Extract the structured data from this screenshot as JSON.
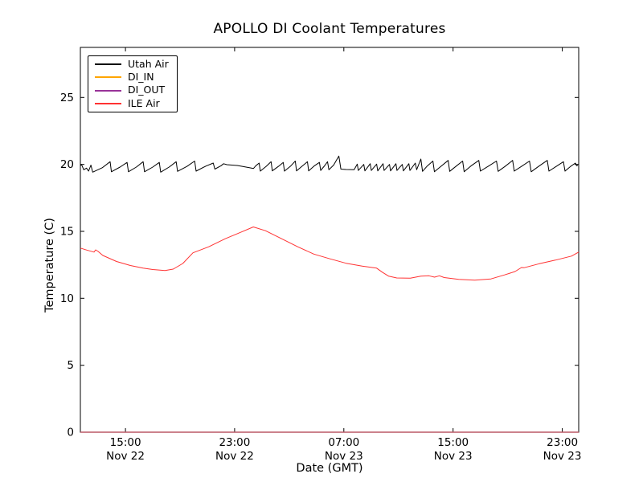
{
  "chart_data": {
    "type": "line",
    "title": "APOLLO DI Coolant Temperatures",
    "xlabel": "Date (GMT)",
    "ylabel": "Temperature (C)",
    "xlim_hours": [
      11.7,
      48.2
    ],
    "ylim": [
      0,
      28.74
    ],
    "grid": false,
    "legend_position": "upper left",
    "y_ticks": [
      0,
      5,
      10,
      15,
      20,
      25
    ],
    "x_ticks": [
      {
        "hour": 15,
        "time": "15:00",
        "date": "Nov 22"
      },
      {
        "hour": 23,
        "time": "23:00",
        "date": "Nov 22"
      },
      {
        "hour": 31,
        "time": "07:00",
        "date": "Nov 23"
      },
      {
        "hour": 39,
        "time": "15:00",
        "date": "Nov 23"
      },
      {
        "hour": 47,
        "time": "23:00",
        "date": "Nov 23"
      }
    ],
    "series": [
      {
        "name": "Utah Air",
        "color": "#000000",
        "width": 1.0,
        "points": [
          [
            11.7,
            19.9
          ],
          [
            11.78,
            20.0
          ],
          [
            11.95,
            19.6
          ],
          [
            12.15,
            19.72
          ],
          [
            12.3,
            19.5
          ],
          [
            12.47,
            19.95
          ],
          [
            12.6,
            19.42
          ],
          [
            13.3,
            19.75
          ],
          [
            13.88,
            20.2
          ],
          [
            13.97,
            19.45
          ],
          [
            14.6,
            19.8
          ],
          [
            15.12,
            20.15
          ],
          [
            15.22,
            19.45
          ],
          [
            15.8,
            19.8
          ],
          [
            16.3,
            20.2
          ],
          [
            16.4,
            19.45
          ],
          [
            17.0,
            19.8
          ],
          [
            17.48,
            20.15
          ],
          [
            17.58,
            19.42
          ],
          [
            18.2,
            19.8
          ],
          [
            18.72,
            20.2
          ],
          [
            18.82,
            19.48
          ],
          [
            19.5,
            19.85
          ],
          [
            20.07,
            20.25
          ],
          [
            20.18,
            19.5
          ],
          [
            20.9,
            19.88
          ],
          [
            21.43,
            20.1
          ],
          [
            21.55,
            19.65
          ],
          [
            22.0,
            19.9
          ],
          [
            22.19,
            20.05
          ],
          [
            22.43,
            19.98
          ],
          [
            23.2,
            19.92
          ],
          [
            24.08,
            19.76
          ],
          [
            24.38,
            19.7
          ],
          [
            24.55,
            19.9
          ],
          [
            24.79,
            20.1
          ],
          [
            24.88,
            19.5
          ],
          [
            25.3,
            19.85
          ],
          [
            25.67,
            20.2
          ],
          [
            25.76,
            19.52
          ],
          [
            26.2,
            19.85
          ],
          [
            26.56,
            20.15
          ],
          [
            26.65,
            19.5
          ],
          [
            27.1,
            19.88
          ],
          [
            27.44,
            20.25
          ],
          [
            27.53,
            19.52
          ],
          [
            27.95,
            19.88
          ],
          [
            28.33,
            20.2
          ],
          [
            28.42,
            19.52
          ],
          [
            28.85,
            19.9
          ],
          [
            29.21,
            20.15
          ],
          [
            29.3,
            19.55
          ],
          [
            29.6,
            19.92
          ],
          [
            29.8,
            20.2
          ],
          [
            29.9,
            19.6
          ],
          [
            30.25,
            19.95
          ],
          [
            30.63,
            20.62
          ],
          [
            30.78,
            19.65
          ],
          [
            31.16,
            19.62
          ],
          [
            31.75,
            19.6
          ],
          [
            31.98,
            20.02
          ],
          [
            32.06,
            19.55
          ],
          [
            32.46,
            20.0
          ],
          [
            32.54,
            19.52
          ],
          [
            32.93,
            20.05
          ],
          [
            33.01,
            19.55
          ],
          [
            33.4,
            20.02
          ],
          [
            33.48,
            19.52
          ],
          [
            33.87,
            20.05
          ],
          [
            33.95,
            19.55
          ],
          [
            34.34,
            20.0
          ],
          [
            34.42,
            19.52
          ],
          [
            34.81,
            20.05
          ],
          [
            34.89,
            19.55
          ],
          [
            35.28,
            20.0
          ],
          [
            35.36,
            19.52
          ],
          [
            35.76,
            20.05
          ],
          [
            35.84,
            19.55
          ],
          [
            36.23,
            20.1
          ],
          [
            36.33,
            19.6
          ],
          [
            36.64,
            20.4
          ],
          [
            36.76,
            19.48
          ],
          [
            37.1,
            19.88
          ],
          [
            37.52,
            20.25
          ],
          [
            37.63,
            19.45
          ],
          [
            38.1,
            19.85
          ],
          [
            38.64,
            20.3
          ],
          [
            38.75,
            19.48
          ],
          [
            39.2,
            19.85
          ],
          [
            39.7,
            20.25
          ],
          [
            39.81,
            19.45
          ],
          [
            40.3,
            19.88
          ],
          [
            40.88,
            20.3
          ],
          [
            41.0,
            19.5
          ],
          [
            41.6,
            19.88
          ],
          [
            42.18,
            20.25
          ],
          [
            42.3,
            19.48
          ],
          [
            42.8,
            19.85
          ],
          [
            43.36,
            20.3
          ],
          [
            43.48,
            19.5
          ],
          [
            44.0,
            19.85
          ],
          [
            44.6,
            20.25
          ],
          [
            44.72,
            19.45
          ],
          [
            45.3,
            19.88
          ],
          [
            45.9,
            20.3
          ],
          [
            46.02,
            19.5
          ],
          [
            46.55,
            19.85
          ],
          [
            47.08,
            20.2
          ],
          [
            47.2,
            19.5
          ],
          [
            47.6,
            19.85
          ],
          [
            47.96,
            20.1
          ],
          [
            48.05,
            19.9
          ],
          [
            48.14,
            19.95
          ]
        ]
      },
      {
        "name": "DI_IN",
        "color": "#ffa500",
        "width": 1.4,
        "points": [
          [
            11.7,
            0.0
          ],
          [
            48.2,
            0.0
          ]
        ]
      },
      {
        "name": "DI_OUT",
        "color": "#993399",
        "width": 1.1,
        "points": [
          [
            11.7,
            0.0
          ],
          [
            48.2,
            0.0
          ]
        ]
      },
      {
        "name": "ILE Air",
        "color": "#ff3232",
        "width": 1.0,
        "points": [
          [
            11.7,
            13.75
          ],
          [
            12.17,
            13.6
          ],
          [
            12.7,
            13.45
          ],
          [
            12.82,
            13.62
          ],
          [
            13.0,
            13.5
          ],
          [
            13.35,
            13.2
          ],
          [
            14.35,
            12.75
          ],
          [
            15.36,
            12.45
          ],
          [
            16.3,
            12.25
          ],
          [
            17.0,
            12.15
          ],
          [
            17.9,
            12.08
          ],
          [
            18.5,
            12.18
          ],
          [
            19.2,
            12.6
          ],
          [
            19.95,
            13.4
          ],
          [
            21.1,
            13.85
          ],
          [
            22.31,
            14.45
          ],
          [
            23.49,
            14.95
          ],
          [
            24.37,
            15.33
          ],
          [
            25.26,
            15.05
          ],
          [
            26.44,
            14.45
          ],
          [
            27.62,
            13.85
          ],
          [
            28.8,
            13.3
          ],
          [
            29.98,
            12.95
          ],
          [
            31.16,
            12.62
          ],
          [
            32.34,
            12.4
          ],
          [
            33.4,
            12.25
          ],
          [
            33.81,
            11.95
          ],
          [
            34.28,
            11.65
          ],
          [
            34.87,
            11.52
          ],
          [
            35.87,
            11.5
          ],
          [
            36.64,
            11.65
          ],
          [
            37.23,
            11.68
          ],
          [
            37.64,
            11.58
          ],
          [
            38.0,
            11.68
          ],
          [
            38.35,
            11.55
          ],
          [
            39.41,
            11.42
          ],
          [
            40.59,
            11.35
          ],
          [
            41.77,
            11.45
          ],
          [
            42.77,
            11.75
          ],
          [
            43.54,
            12.0
          ],
          [
            44.01,
            12.3
          ],
          [
            44.19,
            12.28
          ],
          [
            45.31,
            12.58
          ],
          [
            46.49,
            12.85
          ],
          [
            47.67,
            13.15
          ],
          [
            48.2,
            13.45
          ]
        ]
      }
    ]
  }
}
